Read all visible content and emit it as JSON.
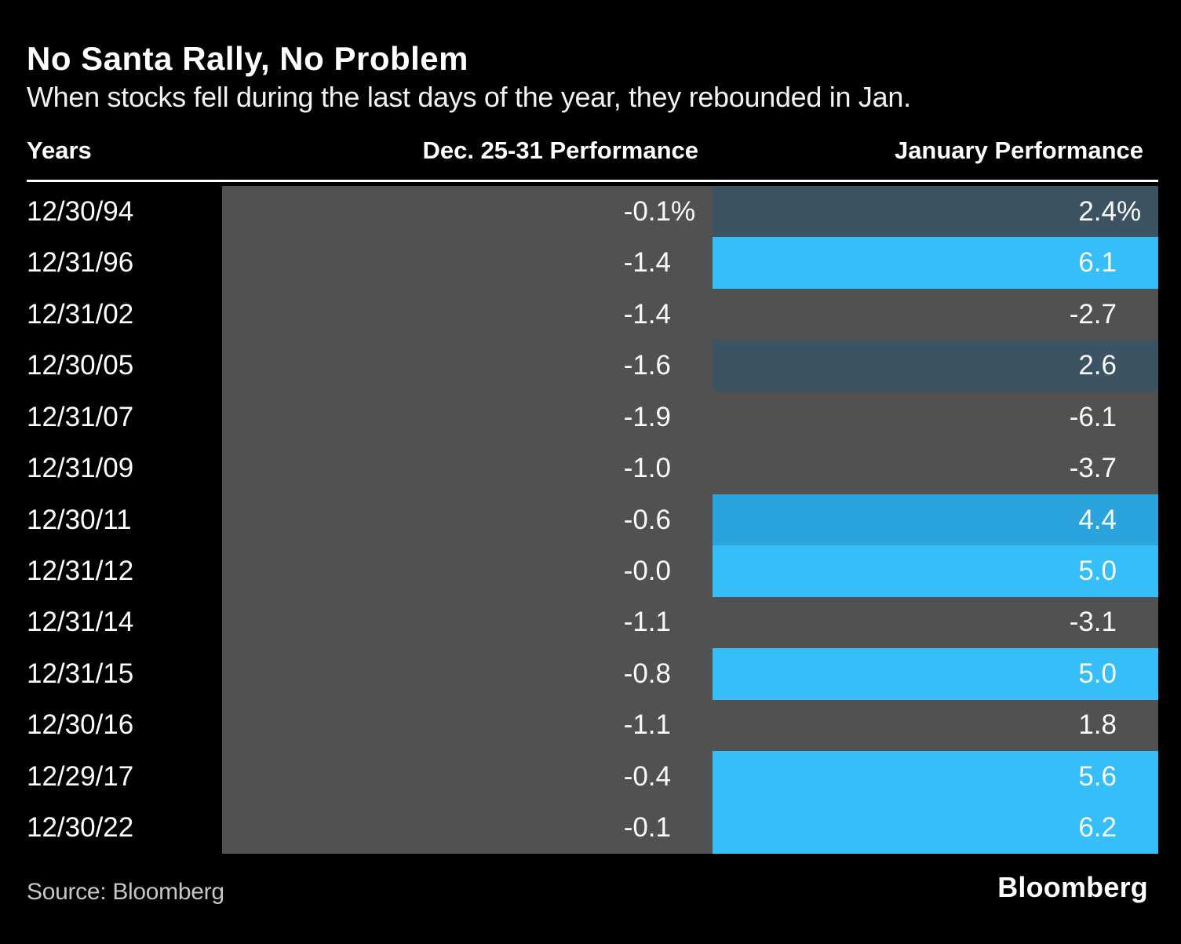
{
  "colors": {
    "background": "#000000",
    "gray": "#515151",
    "slate": "#3B5362",
    "medium": "#2BA3DC",
    "bright": "#35BEF8",
    "header_rule": "#ffffff",
    "text": "#ffffff",
    "source_text": "#c6c6c6"
  },
  "footer": {
    "source": "Source: Bloomberg",
    "logo": "Bloomberg"
  },
  "chart_data": {
    "type": "table",
    "title": "No Santa Rally, No Problem",
    "subtitle": "When stocks fell during the last days of the year, they rebounded in Jan.",
    "columns": [
      "Years",
      "Dec. 25-31 Performance",
      "January Performance"
    ],
    "unit": "%",
    "legend": "bar color encodes January performance: gray = negative/low, slate = ~2-3, medium = ~4, bright = 5+",
    "rows": [
      {
        "date": "12/30/94",
        "dec": "-0.1",
        "jan": "2.4",
        "pct": true,
        "jan_color": "slate"
      },
      {
        "date": "12/31/96",
        "dec": "-1.4",
        "jan": "6.1",
        "pct": false,
        "jan_color": "bright"
      },
      {
        "date": "12/31/02",
        "dec": "-1.4",
        "jan": "-2.7",
        "pct": false,
        "jan_color": "gray"
      },
      {
        "date": "12/30/05",
        "dec": "-1.6",
        "jan": "2.6",
        "pct": false,
        "jan_color": "slate"
      },
      {
        "date": "12/31/07",
        "dec": "-1.9",
        "jan": "-6.1",
        "pct": false,
        "jan_color": "gray"
      },
      {
        "date": "12/31/09",
        "dec": "-1.0",
        "jan": "-3.7",
        "pct": false,
        "jan_color": "gray"
      },
      {
        "date": "12/30/11",
        "dec": "-0.6",
        "jan": "4.4",
        "pct": false,
        "jan_color": "medium"
      },
      {
        "date": "12/31/12",
        "dec": "-0.0",
        "jan": "5.0",
        "pct": false,
        "jan_color": "bright"
      },
      {
        "date": "12/31/14",
        "dec": "-1.1",
        "jan": "-3.1",
        "pct": false,
        "jan_color": "gray"
      },
      {
        "date": "12/31/15",
        "dec": "-0.8",
        "jan": "5.0",
        "pct": false,
        "jan_color": "bright"
      },
      {
        "date": "12/30/16",
        "dec": "-1.1",
        "jan": "1.8",
        "pct": false,
        "jan_color": "gray"
      },
      {
        "date": "12/29/17",
        "dec": "-0.4",
        "jan": "5.6",
        "pct": false,
        "jan_color": "bright"
      },
      {
        "date": "12/30/22",
        "dec": "-0.1",
        "jan": "6.2",
        "pct": false,
        "jan_color": "bright"
      }
    ]
  }
}
